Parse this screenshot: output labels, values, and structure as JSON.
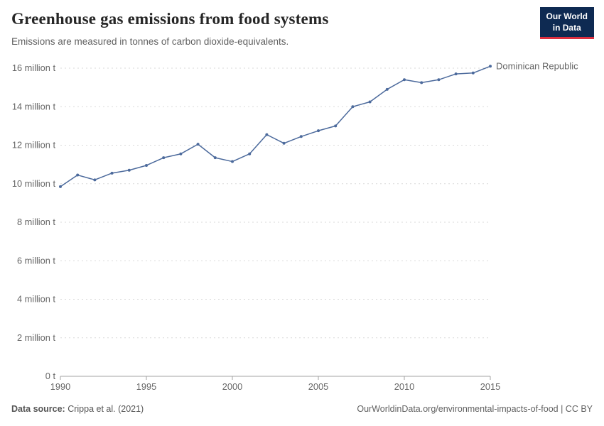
{
  "header": {
    "title": "Greenhouse gas emissions from food systems",
    "subtitle": "Emissions are measured in tonnes of carbon dioxide-equivalents.",
    "logo": {
      "line1": "Our World",
      "line2": "in Data"
    }
  },
  "footer": {
    "source_label": "Data source:",
    "source_value": "Crippa et al. (2021)",
    "credit": "OurWorldinData.org/environmental-impacts-of-food | CC BY"
  },
  "colors": {
    "line": "#4c6a9c",
    "entity_label": "#3360a9",
    "grid": "#dadada",
    "axis": "#a3a3a3",
    "axis_text": "#666666",
    "logo_bg": "#0e2a52",
    "logo_accent": "#dc2f3f"
  },
  "chart_data": {
    "type": "line",
    "title": "Greenhouse gas emissions from food systems",
    "subtitle": "Emissions are measured in tonnes of carbon dioxide-equivalents.",
    "unit": "million t",
    "grid": true,
    "legend_position": "end-of-line",
    "xlim": [
      1990,
      2015
    ],
    "ylim": [
      0,
      16.5
    ],
    "x_ticks": [
      1990,
      1995,
      2000,
      2005,
      2010,
      2015
    ],
    "y_ticks": [
      {
        "value": 0,
        "label": "0 t"
      },
      {
        "value": 2,
        "label": "2 million t"
      },
      {
        "value": 4,
        "label": "4 million t"
      },
      {
        "value": 6,
        "label": "6 million t"
      },
      {
        "value": 8,
        "label": "8 million t"
      },
      {
        "value": 10,
        "label": "10 million t"
      },
      {
        "value": 12,
        "label": "12 million t"
      },
      {
        "value": 14,
        "label": "14 million t"
      },
      {
        "value": 16,
        "label": "16 million t"
      }
    ],
    "series": [
      {
        "name": "Dominican Republic",
        "x": [
          1990,
          1991,
          1992,
          1993,
          1994,
          1995,
          1996,
          1997,
          1998,
          1999,
          2000,
          2001,
          2002,
          2003,
          2004,
          2005,
          2006,
          2007,
          2008,
          2009,
          2010,
          2011,
          2012,
          2013,
          2014,
          2015
        ],
        "values": [
          9.85,
          10.45,
          10.2,
          10.55,
          10.7,
          10.95,
          11.35,
          11.55,
          12.05,
          11.35,
          11.15,
          11.55,
          12.55,
          12.1,
          12.45,
          12.75,
          13.0,
          14.0,
          14.25,
          14.9,
          15.4,
          15.25,
          15.4,
          15.7,
          15.75,
          16.1
        ]
      }
    ]
  }
}
